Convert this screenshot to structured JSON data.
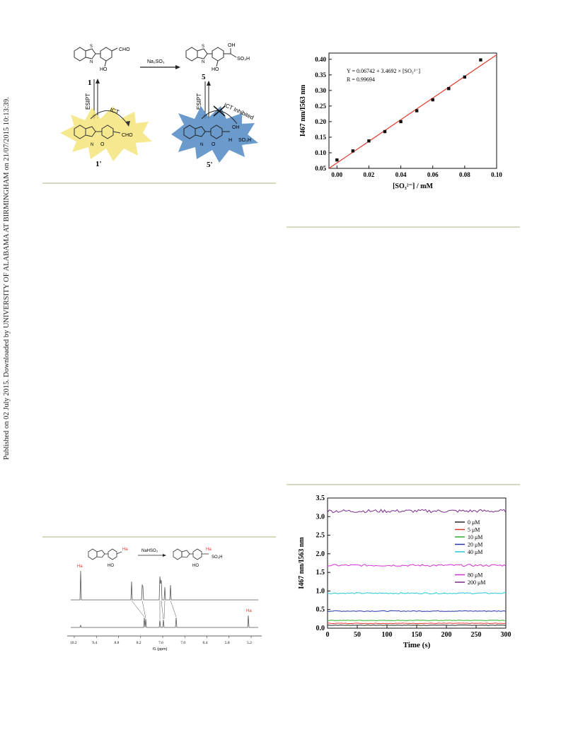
{
  "sidebar": {
    "published_note": "Published on 02 July 2015. Downloaded by UNIVERSITY OF ALABAMA AT BIRMINGHAM on 21/07/2015 10:13:39."
  },
  "scheme": {
    "reagent": "Na₂SO₃",
    "compound1": "1",
    "compound1_tautomer": "1'",
    "compound5": "5",
    "compound5_tautomer": "5'",
    "esipt": "ESIPT",
    "ict": "ICT",
    "ict_inhibited": "ICT Inhibited",
    "cho": "CHO",
    "ho": "HO",
    "oh": "OH",
    "so3h": "SO₃H",
    "h": "H",
    "n": "N",
    "s": "S",
    "o": "O"
  },
  "nmr": {
    "reagent": "NaHSO₃",
    "ho": "HO",
    "so3h": "SO₃H",
    "ha_label": "Ha",
    "axis_label": "f1 (ppm)",
    "ticks": [
      "10.2",
      "9.4",
      "8.8",
      "8.2",
      "7.6",
      "7.0",
      "6.4",
      "5.8",
      "5.2"
    ]
  },
  "chart_data": [
    {
      "type": "scatter",
      "ylabel": "I467 nm/I563 nm",
      "xlabel": "[SO₃²⁻] / mM",
      "xlim": [
        -0.005,
        0.1
      ],
      "ylim": [
        0.05,
        0.42
      ],
      "xticks": [
        "0.00",
        "0.02",
        "0.04",
        "0.06",
        "0.08",
        "0.10"
      ],
      "yticks": [
        "0.05",
        "0.10",
        "0.15",
        "0.20",
        "0.25",
        "0.30",
        "0.35",
        "0.40"
      ],
      "x": [
        0.0,
        0.01,
        0.02,
        0.03,
        0.04,
        0.05,
        0.06,
        0.07,
        0.08,
        0.09
      ],
      "y": [
        0.077,
        0.106,
        0.138,
        0.168,
        0.2,
        0.235,
        0.27,
        0.306,
        0.343,
        0.398
      ],
      "fit": {
        "intercept": 0.06742,
        "slope": 3.4692,
        "color": "#e33b2e"
      },
      "annotations": [
        "Y = 0.06742 + 3.4692 × [SO₃²⁻]",
        "R = 0.99694"
      ]
    },
    {
      "type": "line",
      "ylabel": "I467 nm/I563 nm",
      "xlabel": "Time (s)",
      "xlim": [
        0,
        300
      ],
      "ylim": [
        0,
        3.5
      ],
      "xticks": [
        "0",
        "50",
        "100",
        "150",
        "200",
        "250",
        "300"
      ],
      "yticks": [
        "0.0",
        "0.5",
        "1.0",
        "1.5",
        "2.0",
        "2.5",
        "3.0",
        "3.5"
      ],
      "series": [
        {
          "name": "0 μM",
          "value": 0.08,
          "color": "#222222"
        },
        {
          "name": "5 μM",
          "value": 0.13,
          "color": "#e0352b"
        },
        {
          "name": "10 μM",
          "value": 0.21,
          "color": "#2fae2f"
        },
        {
          "name": "20 μM",
          "value": 0.46,
          "color": "#2733a8"
        },
        {
          "name": "40 μM",
          "value": 0.94,
          "color": "#22c8d8"
        },
        {
          "name": "80 μM",
          "value": 1.69,
          "color": "#d22fd0"
        },
        {
          "name": "200 μM",
          "value": 3.15,
          "color": "#7a2a8a"
        }
      ]
    }
  ]
}
